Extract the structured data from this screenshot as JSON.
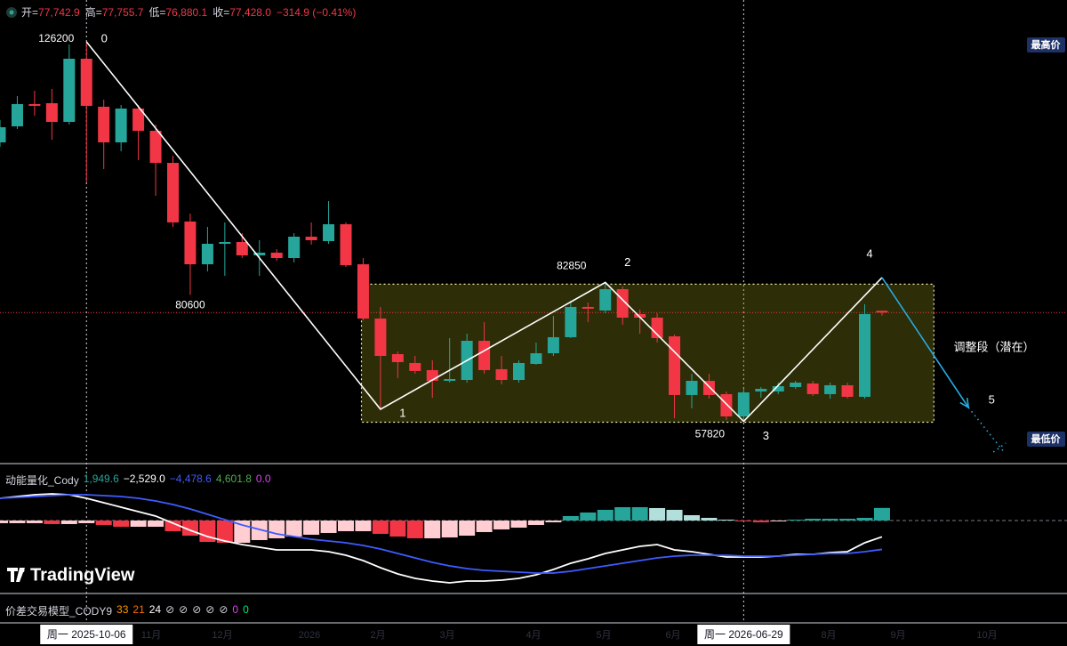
{
  "header": {
    "items": [
      {
        "label": "开=",
        "value": "77,742.9"
      },
      {
        "label": "高=",
        "value": "77,755.7"
      },
      {
        "label": "低=",
        "value": "76,880.1"
      },
      {
        "label": "收=",
        "value": "77,428.0"
      }
    ],
    "change": "−314.9 (−0.41%)"
  },
  "chart_data": {
    "type": "candlestick",
    "up_color": "#26a69a",
    "down_color": "#f23645",
    "ylim": [
      50370,
      133730
    ],
    "open": [
      108080,
      110970,
      114980,
      115140,
      111770,
      123150,
      114500,
      108080,
      114170,
      110170,
      104390,
      93820,
      86120,
      89810,
      90130,
      87720,
      88210,
      87240,
      91090,
      90290,
      93330,
      86120,
      76340,
      69930,
      68330,
      67050,
      65120,
      65280,
      72330,
      67210,
      65280,
      68170,
      70090,
      72980,
      78430,
      77790,
      81630,
      77150,
      76500,
      73140,
      62560,
      65120,
      62720,
      58710,
      63200,
      63200,
      64000,
      64640,
      62720,
      64320,
      62240,
      77742.9
    ],
    "high": [
      112090,
      116420,
      117380,
      117700,
      125720,
      126200,
      115780,
      114820,
      114820,
      111290,
      105680,
      95260,
      92850,
      93660,
      91730,
      90450,
      88850,
      91730,
      93660,
      97500,
      93660,
      87240,
      78430,
      70410,
      69610,
      68810,
      72820,
      73620,
      75700,
      69610,
      68810,
      72020,
      76820,
      79550,
      79230,
      82850,
      82120,
      77950,
      77310,
      73460,
      66410,
      66410,
      63200,
      63680,
      64000,
      64800,
      65120,
      65120,
      64800,
      64800,
      78910,
      77755.7
    ],
    "low": [
      107280,
      110490,
      112890,
      108560,
      111290,
      100870,
      103270,
      106480,
      104870,
      98460,
      92850,
      80600,
      84840,
      84040,
      87240,
      84040,
      86760,
      86440,
      89650,
      89810,
      85640,
      76020,
      60000,
      65610,
      66410,
      62080,
      64800,
      64800,
      66410,
      64480,
      64800,
      68010,
      69610,
      72820,
      75700,
      77310,
      75210,
      73620,
      72020,
      58390,
      60160,
      61910,
      58070,
      57820,
      62080,
      62720,
      63680,
      62400,
      61910,
      61910,
      61910,
      76880.1
    ],
    "close": [
      110810,
      114980,
      114660,
      111770,
      123150,
      114660,
      108080,
      114170,
      110170,
      104390,
      93660,
      86120,
      89810,
      90130,
      87720,
      88210,
      87240,
      91090,
      90450,
      93330,
      85960,
      76340,
      69610,
      68490,
      66890,
      65120,
      65440,
      72330,
      67050,
      65280,
      68330,
      70090,
      72980,
      78430,
      78110,
      81630,
      76500,
      76500,
      72820,
      62560,
      65120,
      62560,
      58710,
      63040,
      63680,
      64160,
      64800,
      62720,
      64320,
      62240,
      77150,
      77428.0
    ],
    "last_price_line": true,
    "zone": {
      "high": 82530,
      "low": 57660,
      "label": "调整段（潜在）"
    },
    "waves": {
      "labels": [
        "0",
        "1",
        "2",
        "3",
        "4",
        "5"
      ],
      "index": [
        5,
        22,
        35,
        43,
        51,
        56
      ],
      "prices": [
        126200,
        60000,
        82850,
        57820,
        83720,
        60310
      ],
      "price_printed": [
        true,
        true,
        true,
        true,
        false,
        false
      ]
    },
    "extra_labels": {
      "80600": 80600
    },
    "high_tag": "最高价",
    "low_tag": "最低价",
    "time_labels": [
      "11月",
      "12月",
      "2026",
      "2月",
      "3月",
      "4月",
      "5月",
      "6月",
      "8月",
      "9月",
      "10月"
    ],
    "crosshair_labels": [
      "周一 2025-10-06",
      "周一 2026-06-29"
    ]
  },
  "indicator": {
    "name": "动能量化_Cody",
    "legend": [
      {
        "text": "1,949.6",
        "color": "#26a69a"
      },
      {
        "text": "−2,529.0",
        "color": "#ffffff"
      },
      {
        "text": "−4,478.6",
        "color": "#3f5bff"
      },
      {
        "text": "4,601.8",
        "color": "#4caf50"
      },
      {
        "text": "0.0",
        "color": "#e040fb"
      }
    ],
    "ylim": [
      -11180,
      8690
    ],
    "histogram": [
      -414,
      -414,
      -414,
      -552,
      -552,
      -414,
      -690,
      -966,
      -966,
      -966,
      -1656,
      -2346,
      -3312,
      -3450,
      -3450,
      -3036,
      -2760,
      -2484,
      -2208,
      -1932,
      -1656,
      -1656,
      -2070,
      -2484,
      -2760,
      -2760,
      -2622,
      -2346,
      -1794,
      -1380,
      -1104,
      -690,
      -276,
      690,
      1242,
      1656,
      2070,
      2070,
      1932,
      1656,
      828,
      414,
      138,
      -138,
      -276,
      -138,
      138,
      276,
      276,
      276,
      414,
      1949.6
    ],
    "macd": {
      "color": "#ffffff",
      "values": [
        3450,
        3726,
        4002,
        4140,
        4002,
        3450,
        2760,
        2070,
        1380,
        690,
        -414,
        -1518,
        -2484,
        -3174,
        -3726,
        -4140,
        -4554,
        -4554,
        -4554,
        -4830,
        -5382,
        -6210,
        -7314,
        -8280,
        -8970,
        -9384,
        -9660,
        -9384,
        -9384,
        -9246,
        -8970,
        -8418,
        -7590,
        -6624,
        -5934,
        -5106,
        -4554,
        -4002,
        -3726,
        -4554,
        -4830,
        -5244,
        -5658,
        -5658,
        -5658,
        -5520,
        -5244,
        -5244,
        -4968,
        -4830,
        -3450,
        -2529
      ]
    },
    "signal": {
      "color": "#3f5bff",
      "values": [
        3450,
        3588,
        3726,
        3864,
        4002,
        4002,
        3864,
        3726,
        3450,
        3036,
        2484,
        1794,
        966,
        138,
        -690,
        -1380,
        -2070,
        -2484,
        -2898,
        -3174,
        -3450,
        -3864,
        -4416,
        -5106,
        -5796,
        -6486,
        -7038,
        -7452,
        -7728,
        -7866,
        -8004,
        -8142,
        -8142,
        -7866,
        -7452,
        -7038,
        -6624,
        -6210,
        -5796,
        -5520,
        -5382,
        -5382,
        -5382,
        -5520,
        -5520,
        -5520,
        -5382,
        -5244,
        -5106,
        -5106,
        -4830,
        -4478.6
      ]
    }
  },
  "indicator2": {
    "name": "价差交易模型_CODY9",
    "legend": [
      {
        "text": "33",
        "color": "#ff9800"
      },
      {
        "text": "21",
        "color": "#ff6d00"
      },
      {
        "text": "24",
        "color": "#ffffff"
      },
      {
        "text": "⊘",
        "color": "#d1d4dc"
      },
      {
        "text": "⊘",
        "color": "#d1d4dc"
      },
      {
        "text": "⊘",
        "color": "#d1d4dc"
      },
      {
        "text": "⊘",
        "color": "#d1d4dc"
      },
      {
        "text": "⊘",
        "color": "#d1d4dc"
      },
      {
        "text": "0",
        "color": "#e040fb"
      },
      {
        "text": "0",
        "color": "#00e676"
      }
    ]
  },
  "logo": "TradingView"
}
